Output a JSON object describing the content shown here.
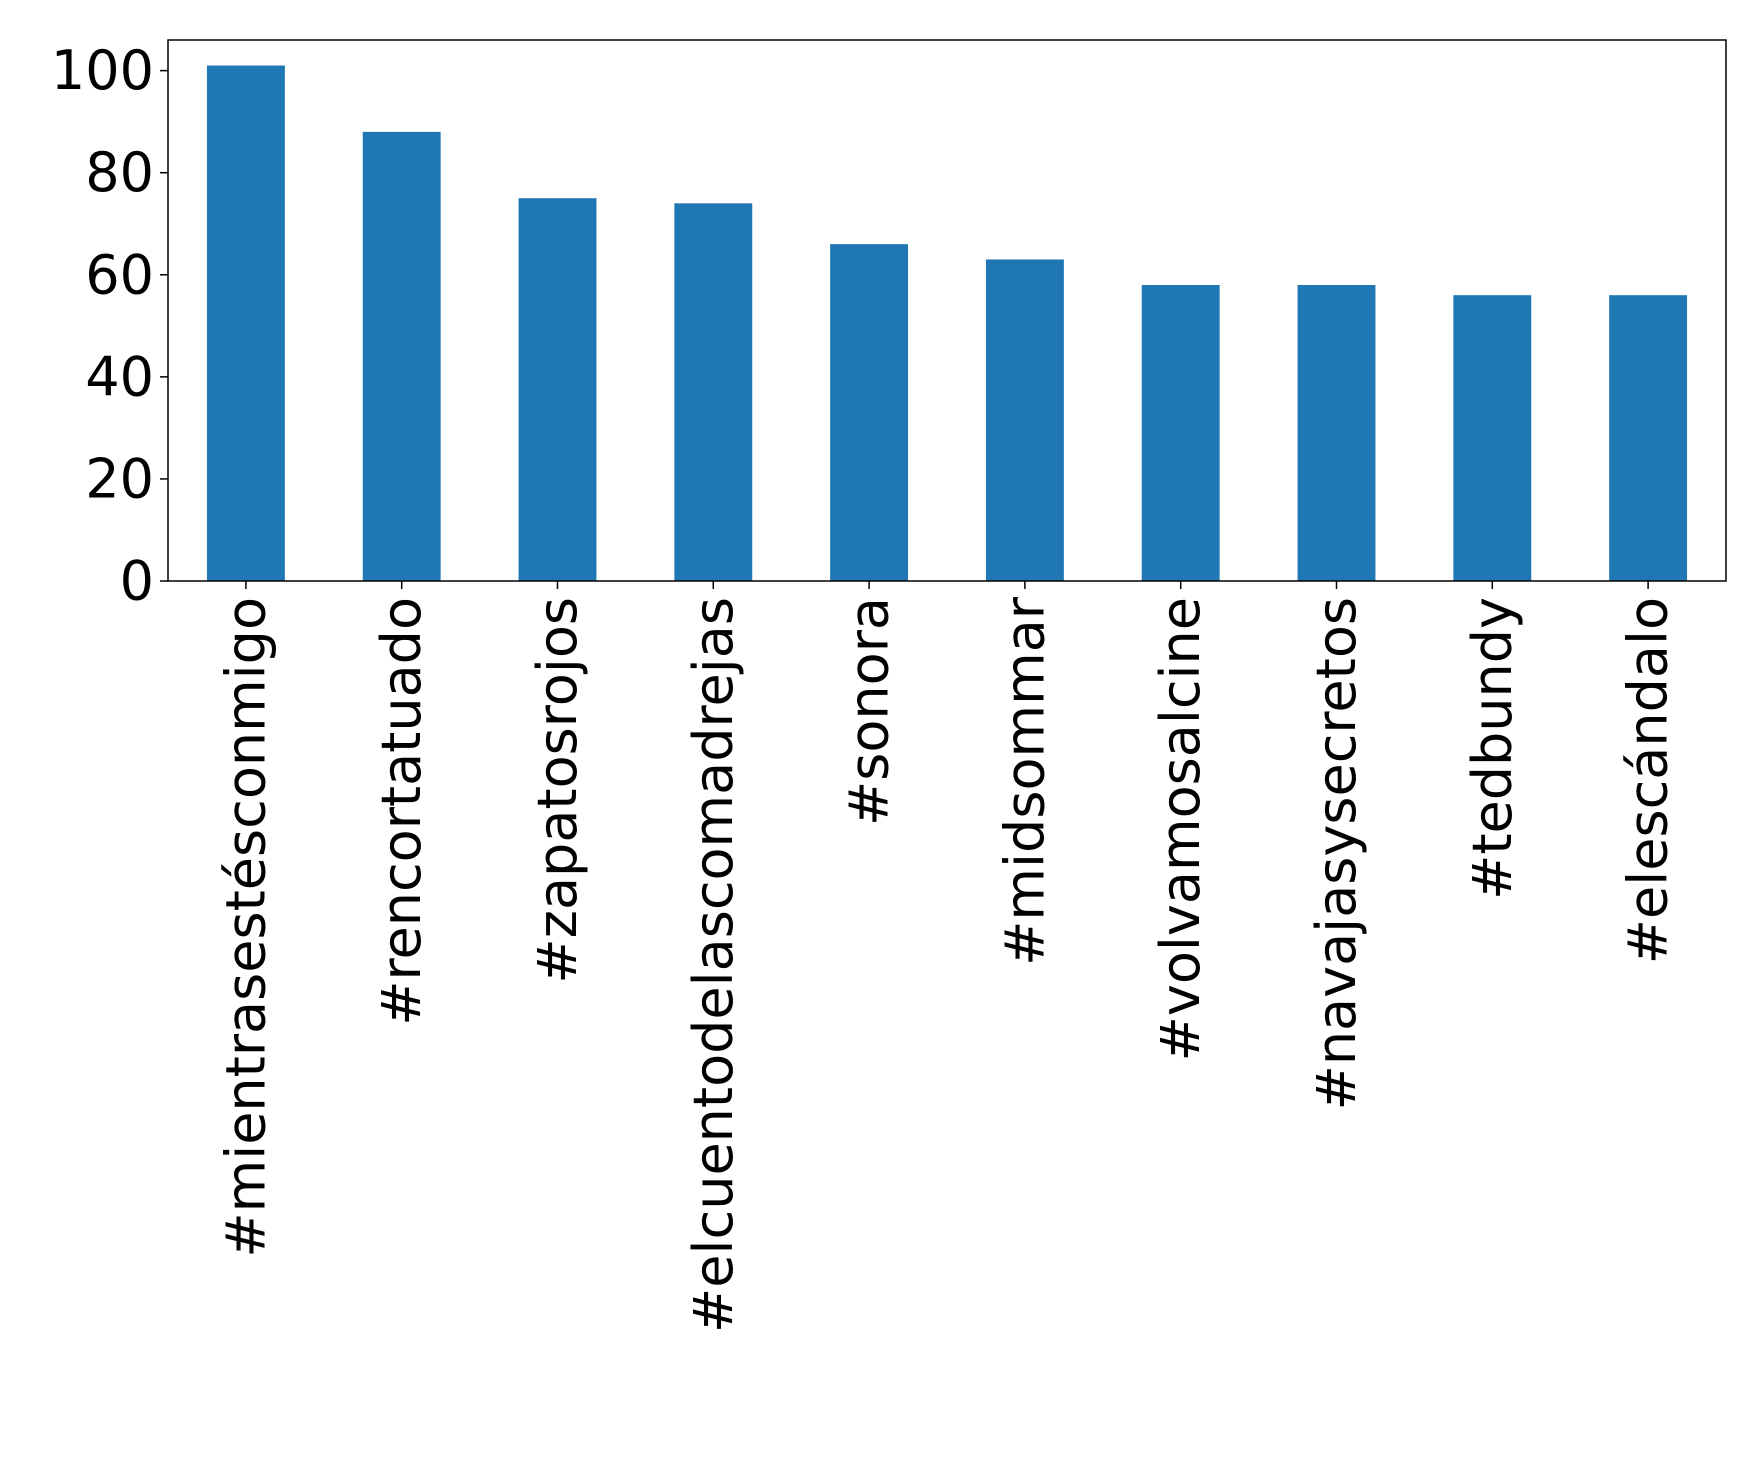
{
  "chart_data": {
    "type": "bar",
    "title": "",
    "xlabel": "",
    "ylabel": "",
    "categories": [
      "#mientrasestésconmigo",
      "#rencortatuado",
      "#zapatosrojos",
      "#elcuentodelascomadrejas",
      "#sonora",
      "#midsommar",
      "#volvamosalcine",
      "#navajasysecretos",
      "#tedbundy",
      "#elescándalo"
    ],
    "values": [
      101,
      88,
      75,
      74,
      66,
      63,
      58,
      58,
      56,
      56
    ],
    "ylim": [
      0,
      106
    ],
    "yticks": [
      0,
      20,
      40,
      60,
      80,
      100
    ],
    "bar_color": "#1f77b4",
    "grid": false,
    "legend": false
  }
}
